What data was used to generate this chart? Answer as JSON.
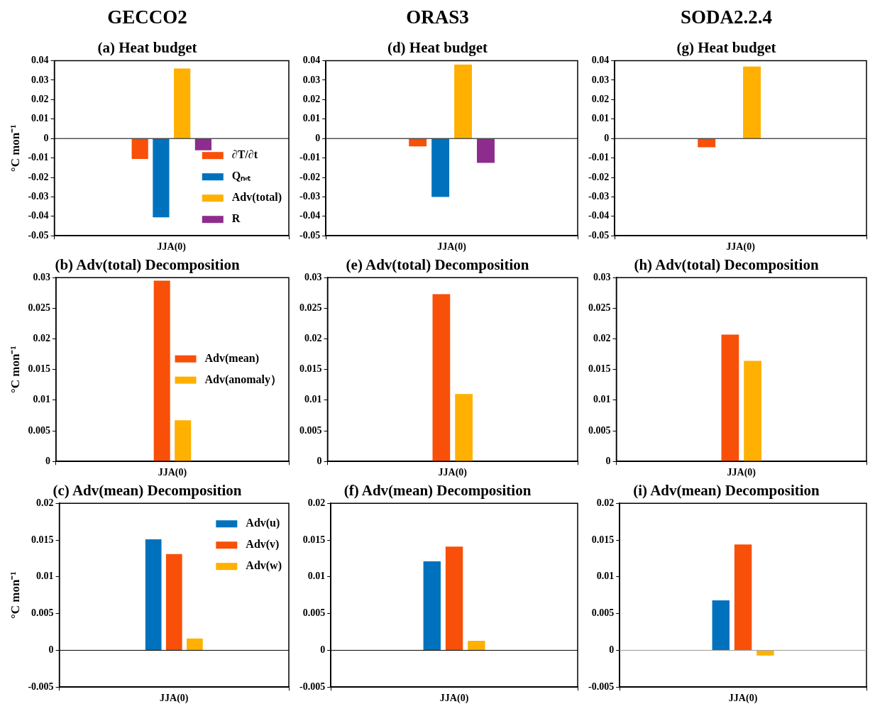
{
  "chart_data": [
    {
      "type": "bar",
      "title": "GECCO2",
      "subtitle": "(a) Heat budget",
      "ylabel": "°C mon⁻¹",
      "categories": [
        "JJA(0)"
      ],
      "ylim": [
        -0.05,
        0.04
      ],
      "yticks": [
        -0.05,
        -0.04,
        -0.03,
        -0.02,
        -0.01,
        0,
        0.01,
        0.02,
        0.03,
        0.04
      ],
      "legend": "bottom right",
      "ref_lines": [
        {
          "axis": "y",
          "value": 0
        }
      ],
      "series": [
        {
          "name": "∂T/∂t",
          "color": "#f85008",
          "values": [
            -0.0105
          ]
        },
        {
          "name": "Qₙₑₜ",
          "color": "#0072bd",
          "values": [
            -0.0405
          ]
        },
        {
          "name": "Adv(total)",
          "color": "#ffb000",
          "values": [
            0.036
          ]
        },
        {
          "name": "R",
          "color": "#8e2c8e",
          "values": [
            -0.006
          ]
        }
      ]
    },
    {
      "type": "bar",
      "title": "ORAS3",
      "subtitle": "(d) Heat budget",
      "categories": [
        "JJA(0)"
      ],
      "ylim": [
        -0.05,
        0.04
      ],
      "yticks": [
        -0.05,
        -0.04,
        -0.03,
        -0.02,
        -0.01,
        0,
        0.01,
        0.02,
        0.03,
        0.04
      ],
      "ref_lines": [
        {
          "axis": "y",
          "value": 0
        }
      ],
      "series": [
        {
          "color": "#f85008",
          "values": [
            -0.004
          ]
        },
        {
          "color": "#0072bd",
          "values": [
            -0.03
          ]
        },
        {
          "color": "#ffb000",
          "values": [
            0.038
          ]
        },
        {
          "color": "#8e2c8e",
          "values": [
            -0.0125
          ]
        }
      ]
    },
    {
      "type": "bar",
      "title": "SODA2.2.4",
      "subtitle": "(g) Heat budget",
      "categories": [
        "JJA(0)"
      ],
      "ylim": [
        -0.05,
        0.04
      ],
      "yticks": [
        -0.05,
        -0.04,
        -0.03,
        -0.02,
        -0.01,
        0,
        0.01,
        0.02,
        0.03,
        0.04
      ],
      "ref_lines": [
        {
          "axis": "y",
          "value": 0
        }
      ],
      "series": [
        {
          "color": "#f85008",
          "values": [
            -0.0045
          ]
        },
        {
          "color": "#0072bd",
          "values": [
            null
          ]
        },
        {
          "color": "#ffb000",
          "values": [
            0.037
          ]
        },
        {
          "color": "#8e2c8e",
          "values": [
            null
          ]
        }
      ]
    },
    {
      "type": "bar",
      "title": "(b) Adv(total) Decomposition",
      "ylabel": "°C mon⁻¹",
      "categories": [
        "JJA(0)"
      ],
      "ylim": [
        0,
        0.03
      ],
      "yticks": [
        0,
        0.005,
        0.01,
        0.015,
        0.02,
        0.025,
        0.03
      ],
      "legend": "right",
      "series": [
        {
          "name": "Adv(mean)",
          "color": "#f85008",
          "values": [
            0.0295
          ]
        },
        {
          "name": "Adv(anomaly）",
          "color": "#ffb000",
          "values": [
            0.0067
          ]
        }
      ]
    },
    {
      "type": "bar",
      "title": "(e) Adv(total) Decomposition",
      "categories": [
        "JJA(0)"
      ],
      "ylim": [
        0,
        0.03
      ],
      "yticks": [
        0,
        0.005,
        0.01,
        0.015,
        0.02,
        0.025,
        0.03
      ],
      "series": [
        {
          "color": "#f85008",
          "values": [
            0.0273
          ]
        },
        {
          "color": "#ffb000",
          "values": [
            0.011
          ]
        }
      ]
    },
    {
      "type": "bar",
      "title": "(h) Adv(total) Decomposition",
      "categories": [
        "JJA(0)"
      ],
      "ylim": [
        0,
        0.03
      ],
      "yticks": [
        0,
        0.005,
        0.01,
        0.015,
        0.02,
        0.025,
        0.03
      ],
      "series": [
        {
          "color": "#f85008",
          "values": [
            0.0207
          ]
        },
        {
          "color": "#ffb000",
          "values": [
            0.0164
          ]
        }
      ]
    },
    {
      "type": "bar",
      "title": "(c) Adv(mean) Decomposition",
      "ylabel": "°C mon⁻¹",
      "categories": [
        "JJA(0)"
      ],
      "ylim": [
        -0.005,
        0.02
      ],
      "yticks": [
        -0.005,
        0,
        0.005,
        0.01,
        0.015,
        0.02
      ],
      "legend": "top right",
      "ref_lines": [
        {
          "axis": "y",
          "value": 0
        }
      ],
      "series": [
        {
          "name": "Adv(u)",
          "color": "#0072bd",
          "values": [
            0.0151
          ]
        },
        {
          "name": "Adv(v)",
          "color": "#f85008",
          "values": [
            0.0131
          ]
        },
        {
          "name": "Adv(w)",
          "color": "#ffb000",
          "values": [
            0.0016
          ]
        }
      ]
    },
    {
      "type": "bar",
      "title": "(f) Adv(mean) Decomposition",
      "categories": [
        "JJA(0)"
      ],
      "ylim": [
        -0.005,
        0.02
      ],
      "yticks": [
        -0.005,
        0,
        0.005,
        0.01,
        0.015,
        0.02
      ],
      "ref_lines": [
        {
          "axis": "y",
          "value": 0
        }
      ],
      "series": [
        {
          "color": "#0072bd",
          "values": [
            0.0121
          ]
        },
        {
          "color": "#f85008",
          "values": [
            0.0141
          ]
        },
        {
          "color": "#ffb000",
          "values": [
            0.0013
          ]
        }
      ]
    },
    {
      "type": "bar",
      "title": "(i) Adv(mean) Decomposition",
      "categories": [
        "JJA(0)"
      ],
      "ylim": [
        -0.005,
        0.02
      ],
      "yticks": [
        -0.005,
        0,
        0.005,
        0.01,
        0.015,
        0.02
      ],
      "ref_lines": [
        {
          "axis": "y",
          "value": 0,
          "color": "#999999"
        }
      ],
      "series": [
        {
          "color": "#0072bd",
          "values": [
            0.0068
          ]
        },
        {
          "color": "#f85008",
          "values": [
            0.0144
          ]
        },
        {
          "color": "#ffb000",
          "values": [
            -0.0007
          ]
        }
      ]
    }
  ]
}
